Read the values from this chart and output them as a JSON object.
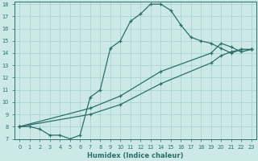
{
  "xlabel": "Humidex (Indice chaleur)",
  "xlim": [
    -0.5,
    23.5
  ],
  "ylim": [
    7,
    18.2
  ],
  "xticks": [
    0,
    1,
    2,
    3,
    4,
    5,
    6,
    7,
    8,
    9,
    10,
    11,
    12,
    13,
    14,
    15,
    16,
    17,
    18,
    19,
    20,
    21,
    22,
    23
  ],
  "yticks": [
    7,
    8,
    9,
    10,
    11,
    12,
    13,
    14,
    15,
    16,
    17,
    18
  ],
  "bg_color": "#cce9e7",
  "grid_color": "#aad4d0",
  "line_color": "#2a7068",
  "lines": [
    {
      "x": [
        0,
        1,
        2,
        3,
        4,
        5,
        6,
        7,
        8,
        9,
        10,
        11,
        12,
        13,
        14,
        15,
        16,
        17,
        18,
        19,
        20,
        21,
        22,
        23
      ],
      "y": [
        8,
        8,
        7.8,
        7.3,
        7.3,
        7.0,
        7.3,
        10.4,
        11.0,
        14.4,
        15.0,
        16.6,
        17.2,
        18.0,
        18.0,
        17.5,
        16.3,
        15.3,
        15.0,
        14.8,
        14.4,
        14.0,
        14.3,
        14.3
      ]
    },
    {
      "x": [
        0,
        23
      ],
      "y": [
        8.0,
        14.3
      ]
    },
    {
      "x": [
        0,
        23
      ],
      "y": [
        8.0,
        14.3
      ]
    }
  ],
  "line1_points": [
    [
      0,
      8
    ],
    [
      7,
      9.5
    ],
    [
      10,
      10.5
    ],
    [
      14,
      12.5
    ],
    [
      19,
      14.0
    ],
    [
      20,
      14.8
    ],
    [
      21,
      14.5
    ],
    [
      22,
      14.1
    ],
    [
      23,
      14.3
    ]
  ],
  "line2_points": [
    [
      0,
      8
    ],
    [
      7,
      9.0
    ],
    [
      10,
      9.8
    ],
    [
      14,
      11.5
    ],
    [
      19,
      13.2
    ],
    [
      20,
      13.8
    ],
    [
      21,
      14.1
    ],
    [
      22,
      14.3
    ],
    [
      23,
      14.3
    ]
  ]
}
